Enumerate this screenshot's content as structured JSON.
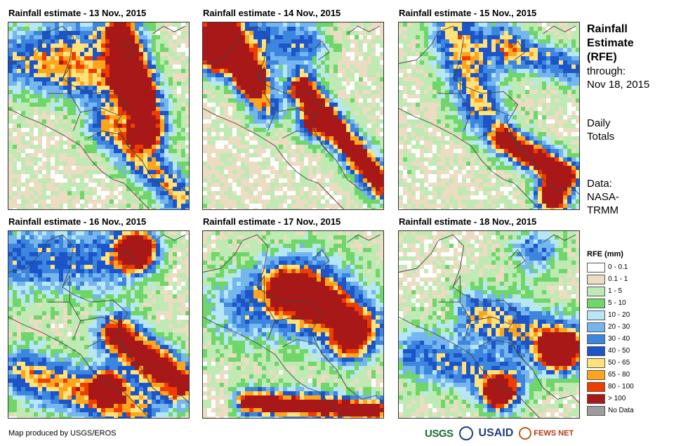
{
  "panels": [
    {
      "title": "Rainfall estimate - 13 Nov., 2015"
    },
    {
      "title": "Rainfall estimate - 14 Nov., 2015"
    },
    {
      "title": "Rainfall estimate - 15 Nov., 2015"
    },
    {
      "title": "Rainfall estimate - 16 Nov., 2015"
    },
    {
      "title": "Rainfall estimate - 17 Nov., 2015"
    },
    {
      "title": "Rainfall estimate - 18 Nov., 2015"
    }
  ],
  "sidebar": {
    "title_line1": "Rainfall",
    "title_line2": "Estimate",
    "title_line3": "(RFE)",
    "through_label": "through:",
    "through_date": "Nov 18, 2015",
    "daily_line1": "Daily",
    "daily_line2": "Totals",
    "data_line1": "Data:",
    "data_line2": "NASA-",
    "data_line3": "TRMM"
  },
  "legend": {
    "title": "RFE (mm)",
    "items": [
      {
        "label": "0 - 0.1",
        "color": "#ffffff"
      },
      {
        "label": "0.1 - 1",
        "color": "#ecdcc1"
      },
      {
        "label": "1 - 5",
        "color": "#bfeab3"
      },
      {
        "label": "5 - 10",
        "color": "#6fd66a"
      },
      {
        "label": "10 - 20",
        "color": "#b7e7f5"
      },
      {
        "label": "20 - 30",
        "color": "#75b6ee"
      },
      {
        "label": "30 - 40",
        "color": "#3c86e0"
      },
      {
        "label": "40 - 50",
        "color": "#1b55c9"
      },
      {
        "label": "50 - 65",
        "color": "#ffe27a"
      },
      {
        "label": "65 - 80",
        "color": "#ffa51d"
      },
      {
        "label": "80 - 100",
        "color": "#f13c00"
      },
      {
        "label": "> 100",
        "color": "#a81818"
      },
      {
        "label": "No Data",
        "color": "#9c9c9c"
      }
    ]
  },
  "credit": "Map produced by USGS/EROS",
  "logos": {
    "usgs": "USGS",
    "usaid": "USAID",
    "fews": "FEWS NET"
  }
}
